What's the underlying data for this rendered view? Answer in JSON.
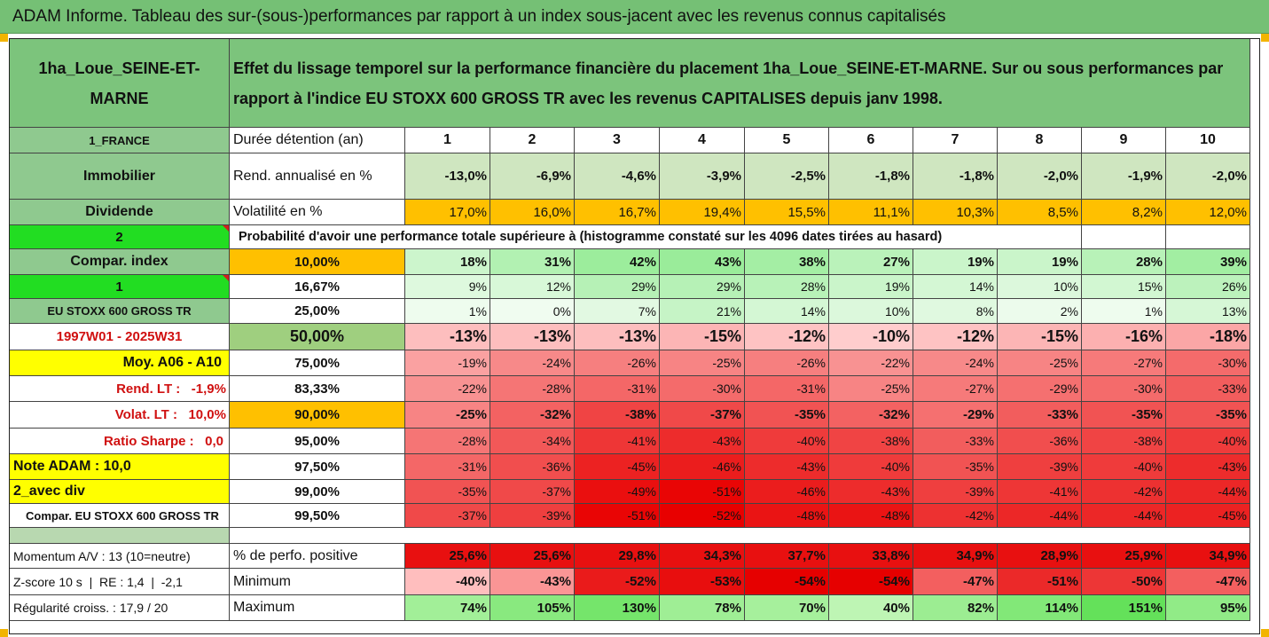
{
  "title": "ADAM Informe. Tableau des sur-(sous-)performances par rapport à un index sous-jacent avec les revenus connus capitalisés",
  "fund_name": "1ha_Loue_SEINE-ET-MARNE",
  "description": "Effet du lissage temporel sur la performance financière du placement 1ha_Loue_SEINE-ET-MARNE. Sur ou sous performances par rapport à l'indice EU STOXX 600 GROSS TR avec les revenus CAPITALISES depuis janv 1998.",
  "left_labels": {
    "country": "1_FRANCE",
    "asset_class": "Immobilier",
    "dividend": "Dividende",
    "num_2": "2",
    "compar_index": "Compar. index",
    "num_1": "1",
    "index_name": "EU STOXX 600 GROSS TR",
    "period": "1997W01 - 2025W31",
    "avg_range": "Moy. A06 - A10",
    "rend_lt": "Rend. LT :   -1,9%",
    "volat_lt": "Volat. LT :   10,0%",
    "sharpe": "Ratio Sharpe :   0,0",
    "note_adam": "Note ADAM : 10,0",
    "avec_div": "2_avec div",
    "compar_full": "Compar. EU STOXX 600 GROSS TR",
    "momentum": "Momentum A/V : 13 (10=neutre)",
    "zscore": "Z-score 10 s  |  RE : 1,4  |  -2,1",
    "regularite": "Régularité croiss. : 17,9 / 20"
  },
  "header": {
    "label": "Durée détention (an)",
    "years": [
      "1",
      "2",
      "3",
      "4",
      "5",
      "6",
      "7",
      "8",
      "9",
      "10"
    ]
  },
  "rend": {
    "label": "Rend. annualisé en %",
    "values": [
      "-13,0%",
      "-6,9%",
      "-4,6%",
      "-3,9%",
      "-2,5%",
      "-1,8%",
      "-1,8%",
      "-2,0%",
      "-1,9%",
      "-2,0%"
    ]
  },
  "volat": {
    "label": "Volatilité en %",
    "values": [
      "17,0%",
      "16,0%",
      "16,7%",
      "19,4%",
      "15,5%",
      "11,1%",
      "10,3%",
      "8,5%",
      "8,2%",
      "12,0%"
    ]
  },
  "prob_text": "Probabilité d'avoir une performance totale supérieure à (histogramme constaté sur les 4096 dates tirées au hasard)",
  "prob_rows": [
    {
      "pct": "10,00%",
      "values": [
        "18%",
        "31%",
        "42%",
        "43%",
        "38%",
        "27%",
        "19%",
        "19%",
        "28%",
        "39%"
      ]
    },
    {
      "pct": "16,67%",
      "values": [
        "9%",
        "12%",
        "29%",
        "29%",
        "28%",
        "19%",
        "14%",
        "10%",
        "15%",
        "26%"
      ]
    },
    {
      "pct": "25,00%",
      "values": [
        "1%",
        "0%",
        "7%",
        "21%",
        "14%",
        "10%",
        "8%",
        "2%",
        "1%",
        "13%"
      ]
    },
    {
      "pct": "50,00%",
      "values": [
        "-13%",
        "-13%",
        "-13%",
        "-15%",
        "-12%",
        "-10%",
        "-12%",
        "-15%",
        "-16%",
        "-18%"
      ]
    },
    {
      "pct": "75,00%",
      "values": [
        "-19%",
        "-24%",
        "-26%",
        "-25%",
        "-26%",
        "-22%",
        "-24%",
        "-25%",
        "-27%",
        "-30%"
      ]
    },
    {
      "pct": "83,33%",
      "values": [
        "-22%",
        "-28%",
        "-31%",
        "-30%",
        "-31%",
        "-25%",
        "-27%",
        "-29%",
        "-30%",
        "-33%"
      ]
    },
    {
      "pct": "90,00%",
      "values": [
        "-25%",
        "-32%",
        "-38%",
        "-37%",
        "-35%",
        "-32%",
        "-29%",
        "-33%",
        "-35%",
        "-35%"
      ]
    },
    {
      "pct": "95,00%",
      "values": [
        "-28%",
        "-34%",
        "-41%",
        "-43%",
        "-40%",
        "-38%",
        "-33%",
        "-36%",
        "-38%",
        "-40%"
      ]
    },
    {
      "pct": "97,50%",
      "values": [
        "-31%",
        "-36%",
        "-45%",
        "-46%",
        "-43%",
        "-40%",
        "-35%",
        "-39%",
        "-40%",
        "-43%"
      ]
    },
    {
      "pct": "99,00%",
      "values": [
        "-35%",
        "-37%",
        "-49%",
        "-51%",
        "-46%",
        "-43%",
        "-39%",
        "-41%",
        "-42%",
        "-44%"
      ]
    },
    {
      "pct": "99,50%",
      "values": [
        "-37%",
        "-39%",
        "-51%",
        "-52%",
        "-48%",
        "-48%",
        "-42%",
        "-44%",
        "-44%",
        "-45%"
      ]
    }
  ],
  "stats": [
    {
      "label": "% de perfo. positive",
      "values": [
        "25,6%",
        "25,6%",
        "29,8%",
        "34,3%",
        "37,7%",
        "33,8%",
        "34,9%",
        "28,9%",
        "25,9%",
        "34,9%"
      ]
    },
    {
      "label": "Minimum",
      "values": [
        "-40%",
        "-43%",
        "-52%",
        "-53%",
        "-54%",
        "-54%",
        "-47%",
        "-51%",
        "-50%",
        "-47%"
      ]
    },
    {
      "label": "Maximum",
      "values": [
        "74%",
        "105%",
        "130%",
        "78%",
        "70%",
        "40%",
        "82%",
        "114%",
        "151%",
        "95%"
      ]
    }
  ],
  "colors": {
    "banner_green": "#75c075",
    "header_green": "#7cc47c",
    "label_green": "#8fc98f",
    "bright_green": "#22dd22",
    "yellow": "#ffff00",
    "orange": "#ffc000",
    "red_text": "#d01010",
    "corner_marker": "#f2b400"
  }
}
